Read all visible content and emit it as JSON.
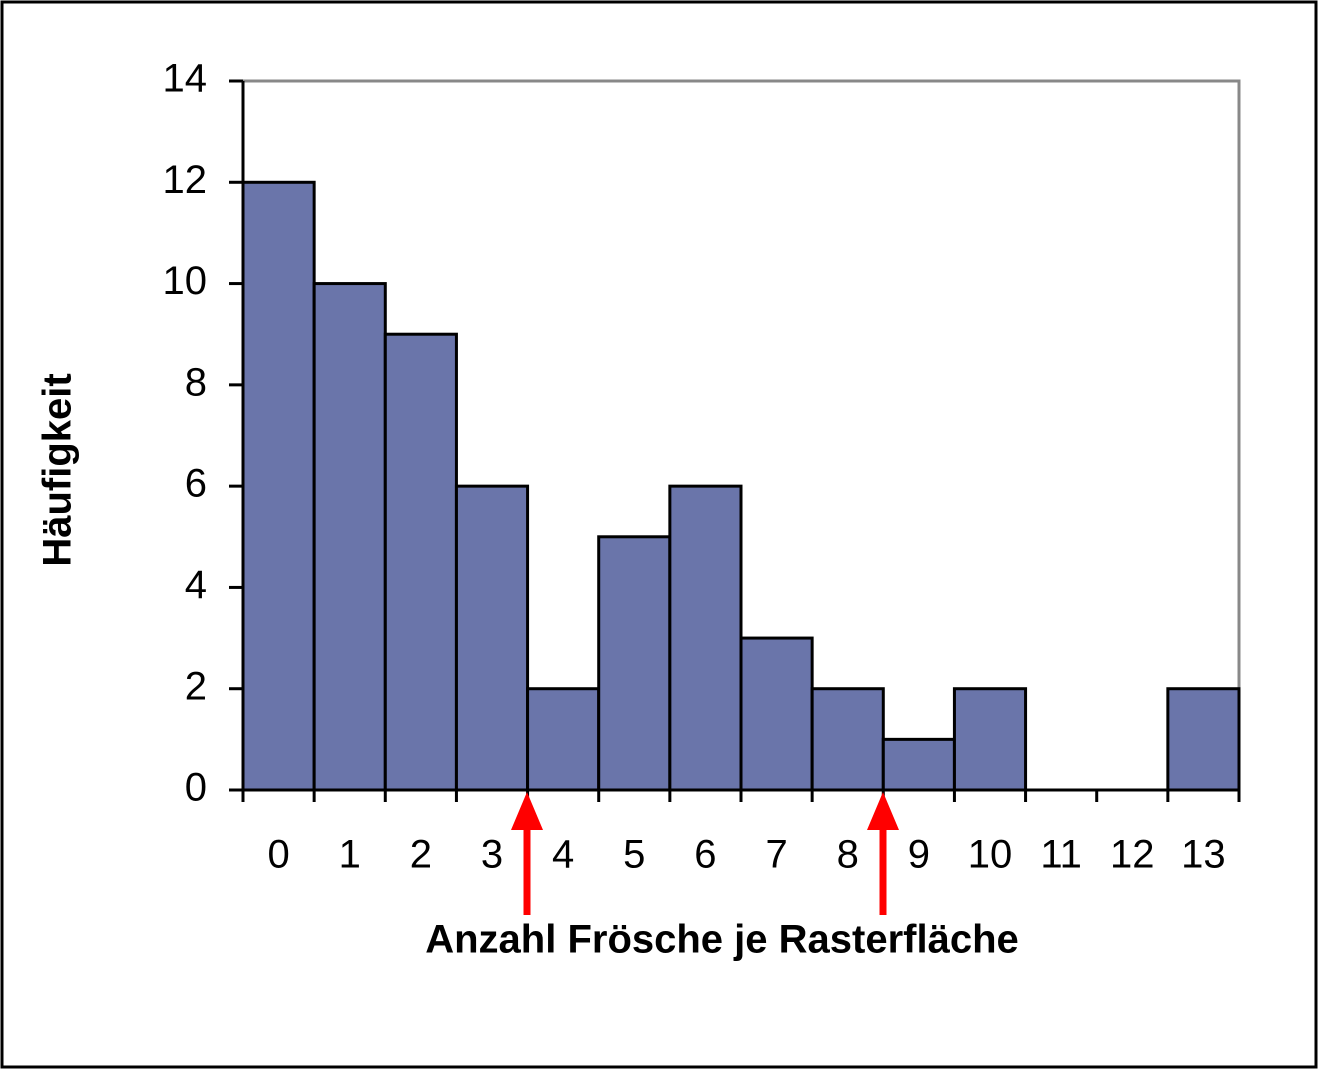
{
  "chart_data": {
    "type": "bar",
    "xlabel": "Anzahl Frösche je Rasterfläche",
    "ylabel": "Häufigkeit",
    "categories": [
      "0",
      "1",
      "2",
      "3",
      "4",
      "5",
      "6",
      "7",
      "8",
      "9",
      "10",
      "11",
      "12",
      "13"
    ],
    "values": [
      12,
      10,
      9,
      6,
      2,
      5,
      6,
      3,
      2,
      1,
      2,
      0,
      0,
      2
    ],
    "color": "#6a75aa",
    "ylim": [
      0,
      14
    ],
    "yticks": [
      0,
      2,
      4,
      6,
      8,
      10,
      12,
      14
    ],
    "grid": false
  }
}
